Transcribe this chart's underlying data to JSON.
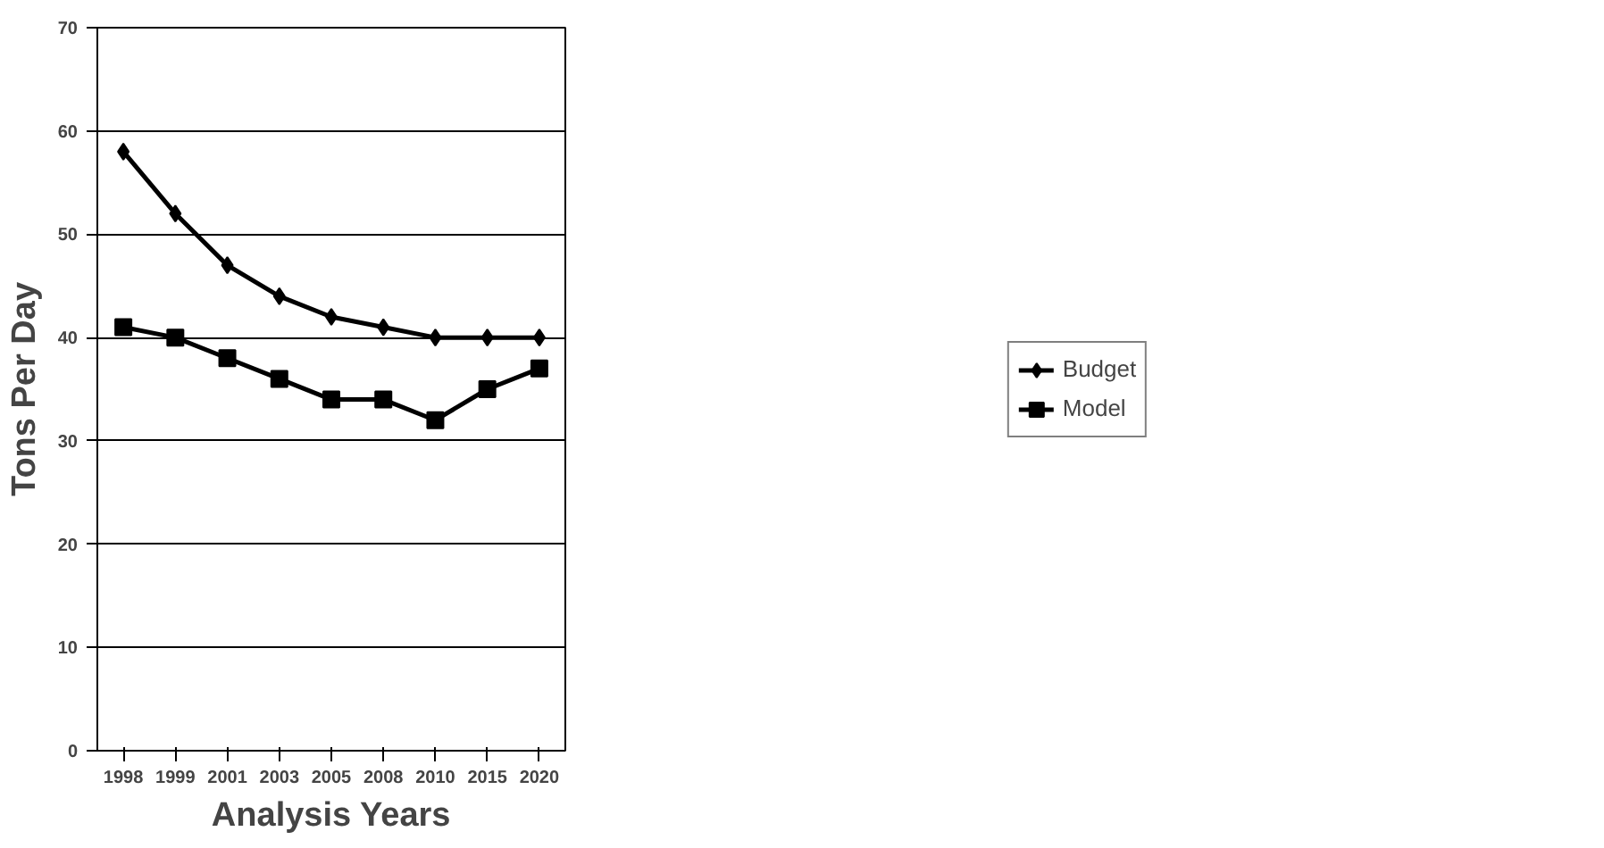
{
  "chart_data": {
    "type": "line",
    "xlabel": "Analysis Years",
    "ylabel": "Tons Per Day",
    "categories": [
      "1998",
      "1999",
      "2001",
      "2003",
      "2005",
      "2008",
      "2010",
      "2015",
      "2020"
    ],
    "series": [
      {
        "name": "Budget",
        "color": "#000000",
        "marker": "diamond",
        "values": [
          58,
          52,
          47,
          44,
          42,
          41,
          40,
          40,
          40
        ]
      },
      {
        "name": "Model",
        "color": "#000000",
        "marker": "square",
        "values": [
          41,
          40,
          38,
          36,
          34,
          34,
          32,
          35,
          37
        ]
      }
    ],
    "ylim": [
      0,
      70
    ],
    "yticks": [
      0,
      10,
      20,
      30,
      40,
      50,
      60,
      70
    ],
    "grid": "y",
    "legend": "right",
    "line_style": "solid"
  }
}
